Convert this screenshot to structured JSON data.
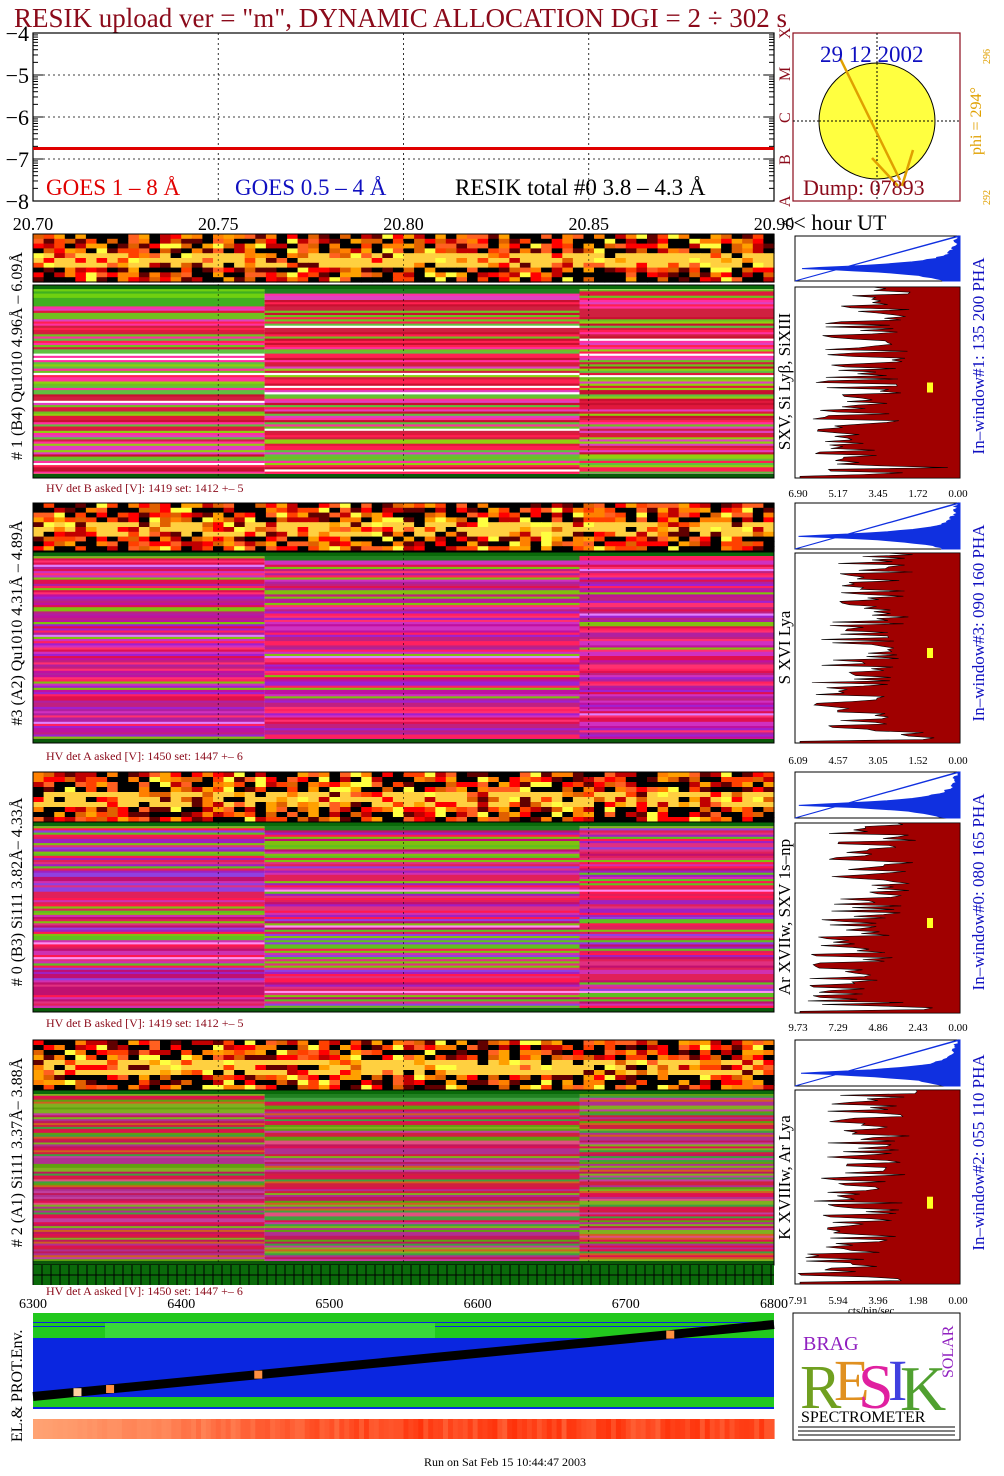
{
  "title": "RESIK upload ver = \"m\", DYNAMIC ALLOCATION  DGI =   2 ÷ 302 s",
  "colors": {
    "title": "#8b0a1a",
    "goes_long": "#e00000",
    "goes_short": "#1010c0",
    "resik": "#000000",
    "histogram_fill": "#a00000",
    "ratio_fill": "#1030e0",
    "sun": "#ffff40",
    "arrow": "#e0a000",
    "env_bg": "#0a26e0",
    "env_band": "#22c81e"
  },
  "top_panel": {
    "goes_long_label": "GOES 1 – 8 Å",
    "goes_short_label": "GOES 0.5 – 4 Å",
    "resik_label": "RESIK total #0  3.8 – 4.3 Å",
    "side_labels": [
      "A",
      "B",
      "C",
      "M",
      "X"
    ],
    "sun_date": "29 12 2002",
    "dump": "Dump: 07893",
    "phi_label": "phi = 294°",
    "phi_small_top": "296",
    "phi_small_bottom": "292"
  },
  "time_axis": {
    "ticks": [
      "20.70",
      "20.75",
      "20.80",
      "20.85",
      "20.90"
    ],
    "unit_label": "<< hour UT"
  },
  "channels": [
    {
      "y_label": "# 1 (B4) Qu1010 4.96Å – 6.09Å",
      "lines_label": "SXV, Si Lyβ, SiXIII",
      "window_label": "In–window#1:  135 200 PHA",
      "hv": "HV det B asked [V]:  1419 set:  1412 +–    5",
      "hist_ticks": [
        "6.90",
        "5.17",
        "3.45",
        "1.72",
        "0.00"
      ]
    },
    {
      "y_label": "#3 (A2) Qu1010  4.31Å – 4.89Å",
      "lines_label": "S XVI Lya",
      "window_label": "In–window#3:  090 160 PHA",
      "hv": "HV det A asked [V]:  1450 set:  1447 +–    6",
      "hist_ticks": [
        "6.09",
        "4.57",
        "3.05",
        "1.52",
        "0.00"
      ]
    },
    {
      "y_label": "# 0 (B3) Si111  3.82Å– 4.33Å",
      "lines_label": "Ar XVIIw,  SXV 1s–np",
      "window_label": "In–window#0:  080 165 PHA",
      "hv": "HV det B asked [V]:  1419 set:  1412 +–    5",
      "hist_ticks": [
        "9.73",
        "7.29",
        "4.86",
        "2.43",
        "0.00"
      ]
    },
    {
      "y_label": "# 2 (A1) Si111  3.37Å–  3.88Å",
      "lines_label": "K XVIIIw,  Ar Lya",
      "window_label": "In–window#2:  055 110 PHA",
      "hv": "HV det A asked [V]:  1450 set:  1447 +–    6",
      "hist_ticks": [
        "7.91",
        "5.94",
        "3.96",
        "1.98",
        "0.00"
      ]
    }
  ],
  "hist_unit": "cts/bin/sec",
  "env_axis": {
    "ticks": [
      "6300",
      "6400",
      "6500",
      "6600",
      "6700",
      "6800"
    ],
    "label": "EL.& PROT.Env."
  },
  "logo": {
    "letters": [
      "R",
      "E",
      "S",
      "I",
      "K"
    ],
    "prefix": "BRAG",
    "suffix": "SOLAR",
    "caption": "SPECTROMETER"
  },
  "footer": "Run on Sat Feb 15 10:44:47 2003",
  "chart_data": [
    {
      "type": "line",
      "x_range": [
        20.7,
        20.9
      ],
      "ylim": [
        -8,
        -4
      ],
      "y_ticks": [
        -8,
        -7,
        -6,
        -5,
        -4
      ],
      "grid": true,
      "series": [
        {
          "name": "GOES 1 – 8 Å",
          "level": -6.75
        },
        {
          "name": "GOES 0.5 – 4 Å",
          "level": -8.2
        },
        {
          "name": "RESIK total #0  3.8 – 4.3 Å",
          "level": -6.8,
          "noise": 0.15
        }
      ]
    },
    {
      "type": "heatmap",
      "channels": 4,
      "regime_breaks_hour": [
        20.7625,
        20.8475
      ],
      "x_range": [
        20.7,
        20.9
      ]
    },
    {
      "type": "line",
      "x_range": [
        6300,
        6800
      ],
      "series": [
        {
          "from": [
            6300,
            0.13
          ],
          "to": [
            6800,
            0.88
          ]
        }
      ]
    }
  ]
}
